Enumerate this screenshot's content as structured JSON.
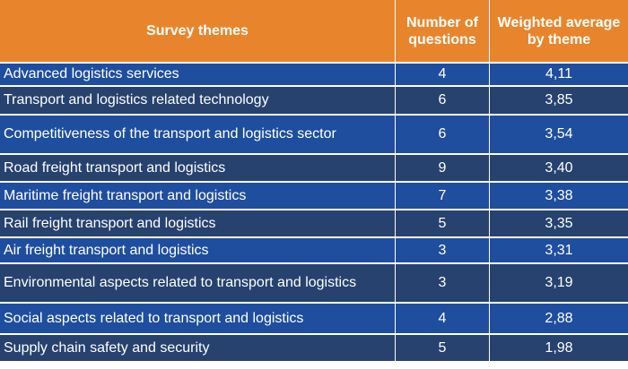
{
  "chart_data": {
    "type": "table",
    "columns": [
      "Survey themes",
      "Number of questions",
      "Weighted average by theme"
    ],
    "header": {
      "theme": "Survey themes",
      "questions_line1": "Number of",
      "questions_line2": "questions",
      "average_line1": "Weighted average",
      "average_line2": "by theme"
    },
    "rows": [
      {
        "theme": "Advanced logistics services",
        "questions": "4",
        "average": "4,11"
      },
      {
        "theme": "Transport and logistics related technology",
        "questions": "6",
        "average": "3,85"
      },
      {
        "theme": "Competitiveness of the transport and logistics sector",
        "questions": "6",
        "average": "3,54"
      },
      {
        "theme": "Road freight transport and logistics",
        "questions": "9",
        "average": "3,40"
      },
      {
        "theme": "Maritime freight transport and logistics",
        "questions": "7",
        "average": "3,38"
      },
      {
        "theme": "Rail freight transport and logistics",
        "questions": "5",
        "average": "3,35"
      },
      {
        "theme": "Air freight transport and logistics",
        "questions": "3",
        "average": "3,31"
      },
      {
        "theme": "Environmental aspects related to transport and logistics",
        "questions": "3",
        "average": "3,19"
      },
      {
        "theme": "Social aspects related to transport and logistics",
        "questions": "4",
        "average": "2,88"
      },
      {
        "theme": "Supply chain safety and security",
        "questions": "5",
        "average": "1,98"
      }
    ]
  }
}
